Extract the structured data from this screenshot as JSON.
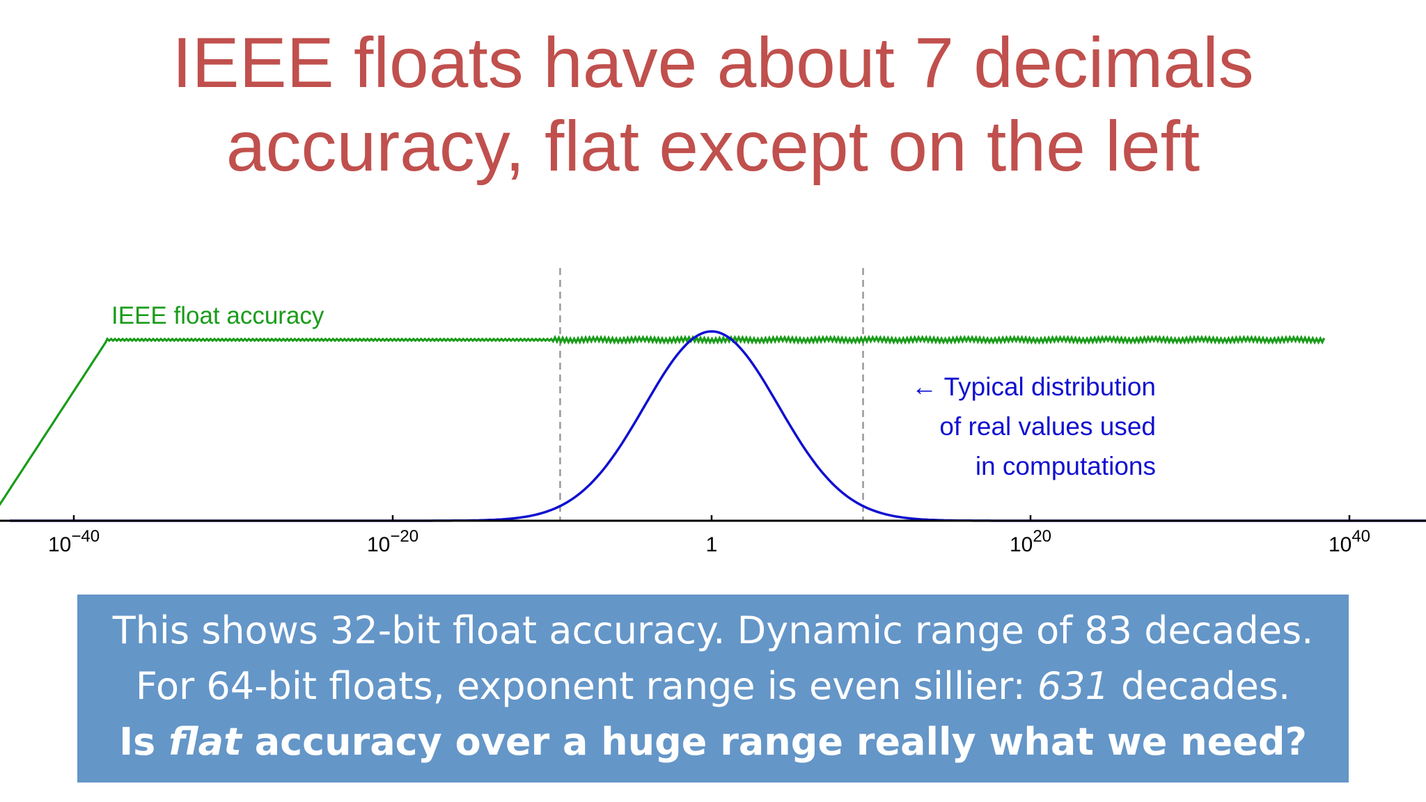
{
  "slide": {
    "title_line_1": "IEEE floats have about 7 decimals",
    "title_line_2": "accuracy, flat except on the left",
    "callout": {
      "line1": "This shows 32-bit float accuracy. Dynamic range of 83 decades.",
      "line2_before": "For 64-bit floats, exponent range is even sillier: ",
      "line2_italic": "631",
      "line2_after": " decades.",
      "line3_before": "Is ",
      "line3_italic": "flat",
      "line3_after": " accuracy over a huge range really what we need?"
    },
    "colors": {
      "title": "#c0504d",
      "accuracy_curve": "#1a9c1a",
      "distribution_curve": "#1010d0",
      "callout_background": "#6496c8",
      "callout_text": "#ffffff",
      "dashed_line": "#999999"
    }
  },
  "chart_data": {
    "type": "line",
    "x_scale": "log10",
    "xlim_exponent": [
      -44,
      45
    ],
    "x_ticks": [
      {
        "base": "10",
        "exp": "−40",
        "value_exponent": -40
      },
      {
        "base": "10",
        "exp": "−20",
        "value_exponent": -20
      },
      {
        "base": "1",
        "exp": "",
        "value_exponent": 0
      },
      {
        "base": "10",
        "exp": "20",
        "value_exponent": 20
      },
      {
        "base": "10",
        "exp": "40",
        "value_exponent": 40
      }
    ],
    "dashed_lines_exponent": [
      -9.5,
      9.5
    ],
    "series": [
      {
        "name": "IEEE float accuracy",
        "description": "relative accuracy in decimals",
        "points_exponent_vs_decimals": [
          [
            -45,
            0.3
          ],
          [
            -37.9,
            7.2
          ],
          [
            38.5,
            7.2
          ]
        ],
        "noisy_region_exponent": [
          -10,
          38.5
        ]
      },
      {
        "name": "Typical distribution of real values used in computations",
        "shape": "gaussian",
        "center_exponent": 0,
        "sigma_exponent": 4.2,
        "peak_relative_height": 0.8
      }
    ],
    "annotations": {
      "accuracy_label": "IEEE float accuracy",
      "distribution_arrow": "←",
      "distribution_line_1": "Typical distribution",
      "distribution_line_2": "of real values used",
      "distribution_line_3": "in computations"
    }
  }
}
